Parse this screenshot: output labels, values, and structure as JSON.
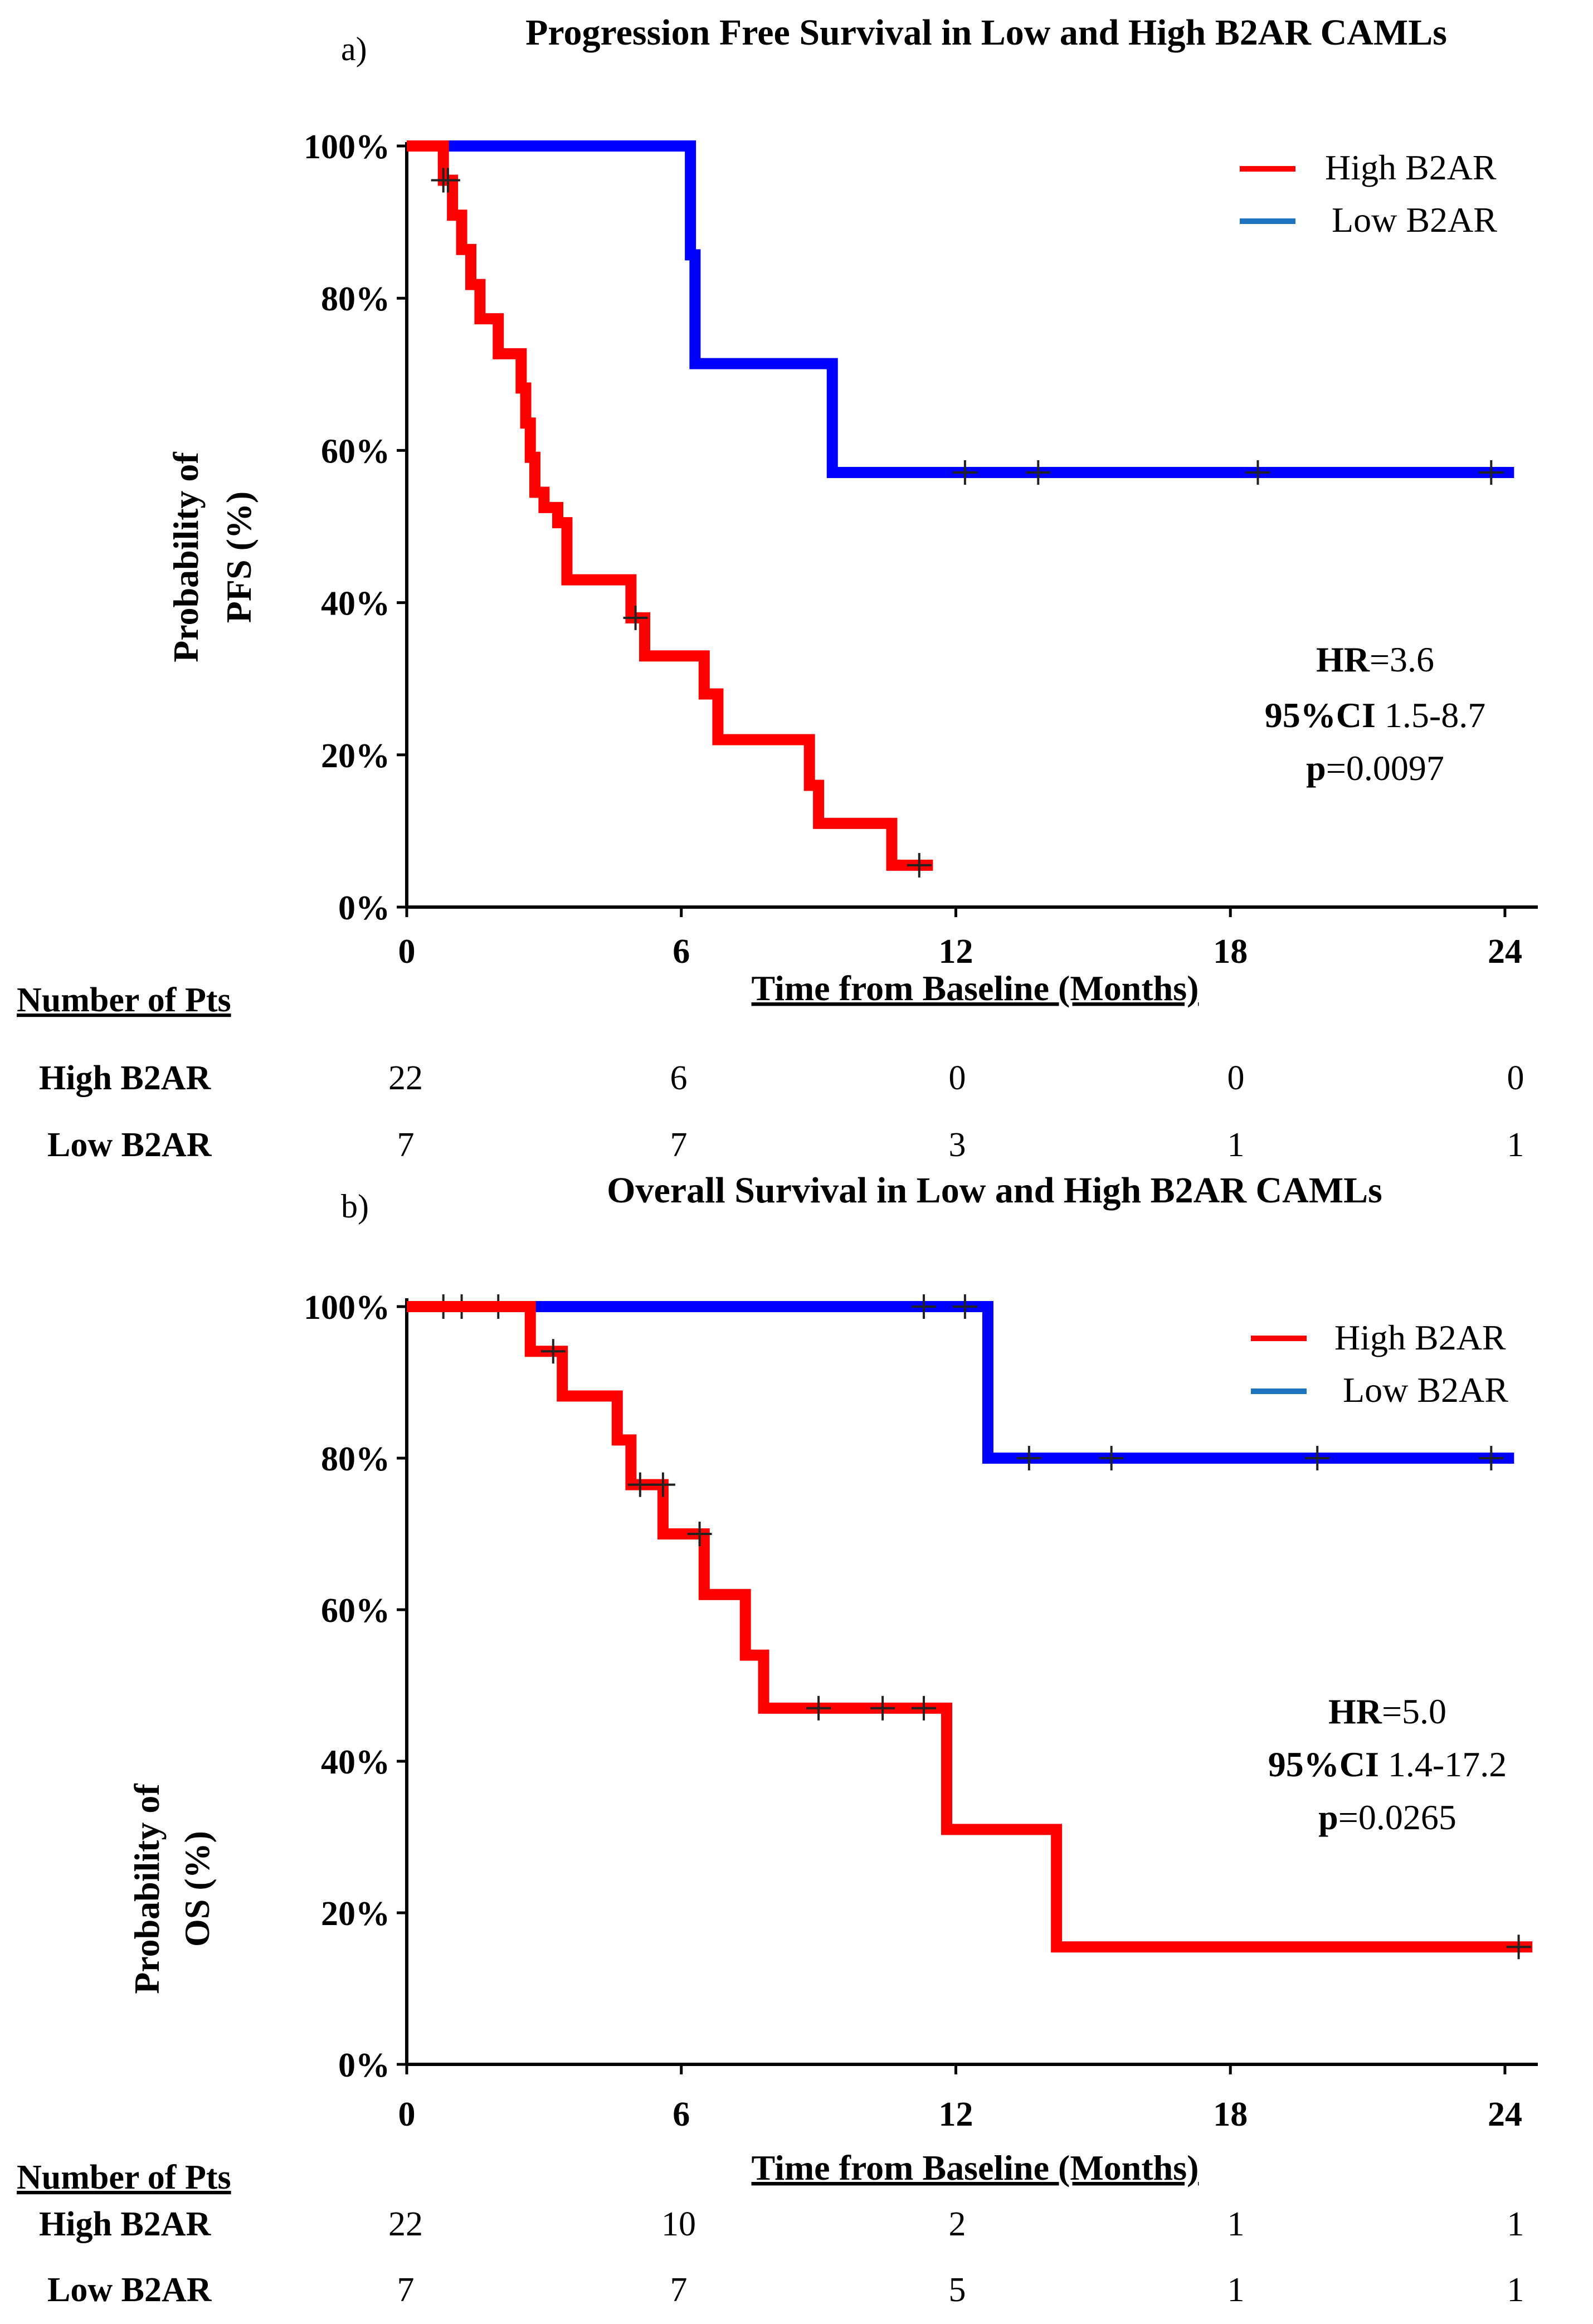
{
  "chart_data": [
    {
      "panel_label": "a)",
      "type": "line",
      "title": "Progression Free Survival in Low and High B2AR CAMLs",
      "xlabel": "Time from  Baseline (Months)",
      "ylabel_line1": "Probability  of",
      "ylabel_line2": "PFS (%)",
      "xlim": [
        0,
        24.5
      ],
      "ylim": [
        0,
        100
      ],
      "x_ticks": [
        "0",
        "6",
        "12",
        "18",
        "24"
      ],
      "y_ticks": [
        "0%",
        "20%",
        "40%",
        "60%",
        "80%",
        "100%"
      ],
      "legend_position": "top-right",
      "series": [
        {
          "name": "High B2AR",
          "color": "#ff0000",
          "steps": [
            [
              0,
              100
            ],
            [
              0.8,
              95.5
            ],
            [
              1.0,
              90.9
            ],
            [
              1.2,
              86.4
            ],
            [
              1.4,
              81.8
            ],
            [
              1.6,
              77.3
            ],
            [
              2.0,
              72.7
            ],
            [
              2.5,
              68.2
            ],
            [
              2.6,
              63.6
            ],
            [
              2.7,
              59.1
            ],
            [
              2.8,
              54.5
            ],
            [
              3.0,
              52.5
            ],
            [
              3.3,
              50.5
            ],
            [
              3.5,
              43.0
            ],
            [
              4.9,
              38.0
            ],
            [
              5.2,
              33.0
            ],
            [
              6.5,
              28.0
            ],
            [
              6.8,
              22.0
            ],
            [
              8.8,
              16.0
            ],
            [
              9.0,
              11.0
            ],
            [
              10.6,
              5.5
            ],
            [
              11.5,
              5.5
            ]
          ],
          "censored": [
            [
              0.8,
              95.5
            ],
            [
              0.9,
              95.5
            ],
            [
              5.0,
              38.0
            ],
            [
              11.2,
              5.5
            ]
          ]
        },
        {
          "name": "Low B2AR",
          "color": "#0000ff",
          "steps": [
            [
              0,
              100
            ],
            [
              6.2,
              85.7
            ],
            [
              6.3,
              71.4
            ],
            [
              9.3,
              57.1
            ],
            [
              24.2,
              57.1
            ]
          ],
          "censored": [
            [
              12.2,
              57.1
            ],
            [
              13.8,
              57.1
            ],
            [
              18.6,
              57.1
            ],
            [
              23.7,
              57.1
            ]
          ]
        }
      ],
      "annotation": {
        "hr_label": "HR",
        "hr_value": "=3.6",
        "ci_label": "95%CI",
        "ci_value": " 1.5-8.7",
        "p_label": "p",
        "p_value": "=0.0097"
      },
      "risk_table": {
        "header": "Number  of Pts",
        "rows": [
          {
            "label": "High  B2AR",
            "values": [
              "22",
              "6",
              "0",
              "0",
              "0"
            ]
          },
          {
            "label": "Low  B2AR",
            "values": [
              "7",
              "7",
              "3",
              "1",
              "1"
            ]
          }
        ]
      }
    },
    {
      "panel_label": "b)",
      "type": "line",
      "title": "Overall Survival  in Low and High  B2AR CAMLs",
      "xlabel": "Time from  Baseline (Months)",
      "ylabel_line1": "Probability  of",
      "ylabel_line2": "OS (%)",
      "xlim": [
        0,
        24.5
      ],
      "ylim": [
        0,
        100
      ],
      "x_ticks": [
        "0",
        "6",
        "12",
        "18",
        "24"
      ],
      "y_ticks": [
        "0%",
        "20%",
        "40%",
        "60%",
        "80%",
        "100%"
      ],
      "legend_position": "top-right",
      "series": [
        {
          "name": "High  B2AR",
          "color": "#ff0000",
          "steps": [
            [
              0,
              100
            ],
            [
              2.7,
              94.1
            ],
            [
              3.4,
              88.2
            ],
            [
              4.6,
              82.4
            ],
            [
              4.9,
              76.5
            ],
            [
              5.6,
              70.0
            ],
            [
              6.5,
              62.0
            ],
            [
              7.4,
              54.0
            ],
            [
              7.8,
              47.0
            ],
            [
              11.8,
              31.0
            ],
            [
              14.2,
              15.5
            ],
            [
              24.6,
              15.5
            ]
          ],
          "censored": [
            [
              3.2,
              94.1
            ],
            [
              5.1,
              76.5
            ],
            [
              5.6,
              76.5
            ],
            [
              6.4,
              70.0
            ],
            [
              9.0,
              47.0
            ],
            [
              10.4,
              47.0
            ],
            [
              11.3,
              47.0
            ],
            [
              24.3,
              15.5
            ]
          ]
        },
        {
          "name": "Low B2AR",
          "color": "#0000ff",
          "steps": [
            [
              0,
              100
            ],
            [
              12.7,
              80.0
            ],
            [
              24.2,
              80.0
            ]
          ],
          "censored": [
            [
              0.8,
              100
            ],
            [
              1.2,
              100
            ],
            [
              2.0,
              100
            ],
            [
              11.3,
              100
            ],
            [
              12.2,
              100
            ],
            [
              13.6,
              80.0
            ],
            [
              15.4,
              80.0
            ],
            [
              19.9,
              80.0
            ],
            [
              23.7,
              80.0
            ]
          ]
        }
      ],
      "annotation": {
        "hr_label": "HR",
        "hr_value": "=5.0",
        "ci_label": "95%CI",
        "ci_value": " 1.4-17.2",
        "p_label": "p",
        "p_value": "=0.0265"
      },
      "risk_table": {
        "header": "Number  of Pts",
        "rows": [
          {
            "label": "High  B2AR",
            "values": [
              "22",
              "10",
              "2",
              "1",
              "1"
            ]
          },
          {
            "label": "Low  B2AR",
            "values": [
              "7",
              "7",
              "5",
              "1",
              "1"
            ]
          }
        ]
      }
    }
  ]
}
